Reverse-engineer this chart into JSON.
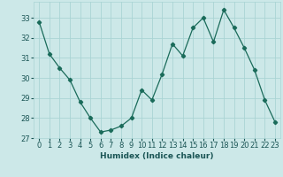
{
  "x": [
    0,
    1,
    2,
    3,
    4,
    5,
    6,
    7,
    8,
    9,
    10,
    11,
    12,
    13,
    14,
    15,
    16,
    17,
    18,
    19,
    20,
    21,
    22,
    23
  ],
  "y": [
    32.8,
    31.2,
    30.5,
    29.9,
    28.8,
    28.0,
    27.3,
    27.4,
    27.6,
    28.0,
    29.4,
    28.9,
    30.2,
    31.7,
    31.1,
    32.5,
    33.0,
    31.8,
    33.4,
    32.5,
    31.5,
    30.4,
    28.9,
    27.8
  ],
  "line_color": "#1a6b5a",
  "marker": "D",
  "marker_size": 2.2,
  "bg_color": "#cce8e8",
  "grid_color": "#aad4d4",
  "xlabel": "Humidex (Indice chaleur)",
  "ylim": [
    27,
    33.8
  ],
  "xlim": [
    -0.5,
    23.5
  ],
  "yticks": [
    27,
    28,
    29,
    30,
    31,
    32,
    33
  ],
  "xticks": [
    0,
    1,
    2,
    3,
    4,
    5,
    6,
    7,
    8,
    9,
    10,
    11,
    12,
    13,
    14,
    15,
    16,
    17,
    18,
    19,
    20,
    21,
    22,
    23
  ],
  "xlabel_fontsize": 6.5,
  "tick_fontsize": 6.0,
  "linewidth": 0.9
}
